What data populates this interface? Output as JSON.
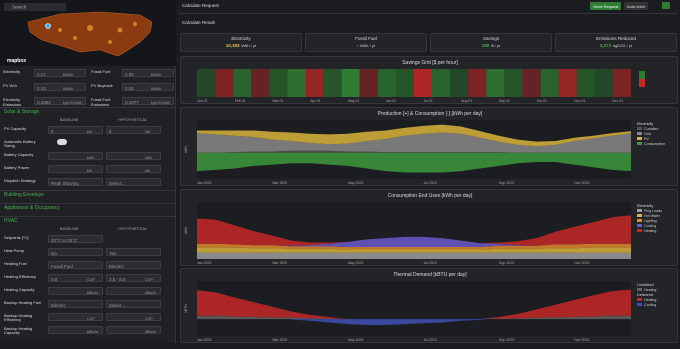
{
  "map": {
    "search": "Search",
    "logo": "mapbox"
  },
  "rates": [
    {
      "label": "Electricity",
      "value": "0.17",
      "unit": "$/kWh"
    },
    {
      "label": "Fossil Fuel",
      "value": "0.05",
      "unit": "$/kWh"
    },
    {
      "label": "PV W/A",
      "value": "0.10",
      "unit": "$/kWh"
    },
    {
      "label": "PV Buyback",
      "value": "0.04",
      "unit": "$/kWh"
    },
    {
      "label": "Electricity Emissions",
      "value": "0.2862",
      "unit": "kgCO2/kWh"
    },
    {
      "label": "Fossil Fuel Emissions",
      "value": "0.1977",
      "unit": "kgCO2/kWh"
    }
  ],
  "solar": {
    "title": "Solar & Storage",
    "columns": [
      "BASELINE",
      "HYPOTHETICAL"
    ],
    "rows": [
      {
        "label": "PV Capacity",
        "baseline": {
          "value": "0",
          "unit": "kW"
        },
        "hypothetical": {
          "value": "6",
          "unit": "kW"
        }
      },
      {
        "label": "Automatic Battery Sizing",
        "toggle": true
      },
      {
        "label": "Battery Capacity",
        "baseline": {
          "unit": "kWh"
        },
        "hypothetical": {
          "unit": "kWh"
        }
      },
      {
        "label": "Battery Power",
        "baseline": {
          "unit": "kW"
        },
        "hypothetical": {
          "unit": "kW"
        }
      },
      {
        "label": "Dispatch Strategy",
        "baseline": {
          "value": "Peak Shaving"
        },
        "hypothetical": {
          "value": "Select..."
        }
      }
    ]
  },
  "sections": [
    "Building Envelope",
    "Appliances & Occupancy"
  ],
  "hvac": {
    "title": "HVAC",
    "columns": [
      "BASELINE",
      "HYPOTHETICAL"
    ],
    "rows": [
      {
        "label": "Setpoints [°C]",
        "baseline": {
          "value": "20°C to 25°C"
        }
      },
      {
        "label": "Heat Pump",
        "baseline": {
          "value": "No"
        },
        "hypothetical": {
          "value": "Yes"
        }
      },
      {
        "label": "Heating Fuel",
        "baseline": {
          "value": "Fossil Fuel"
        },
        "hypothetical": {
          "value": "Electric"
        }
      },
      {
        "label": "Heating Efficiency",
        "baseline": {
          "value": "0.8",
          "unit": "COP"
        },
        "hypothetical": {
          "value": "2.5 - 5.5",
          "unit": "COP"
        }
      },
      {
        "label": "Heating Capacity",
        "baseline": {
          "unit": "kBtu/hr"
        },
        "hypothetical": {
          "unit": "kBtu/hr"
        }
      },
      {
        "label": "Backup Heating Fuel",
        "baseline": {
          "value": "Electric"
        },
        "hypothetical": {
          "value": "Select..."
        }
      },
      {
        "label": "Backup Heating Efficiency",
        "baseline": {
          "unit": "COP"
        },
        "hypothetical": {
          "unit": "COP"
        }
      },
      {
        "label": "Backup Heating Capacity",
        "baseline": {
          "unit": "kBtu/hr"
        },
        "hypothetical": {
          "unit": "kBtu/hr"
        }
      }
    ]
  },
  "header": {
    "request": "Calculate Request",
    "send": "Send Request",
    "auto": "Auto-fetch",
    "result": "Calculate Result"
  },
  "cards": [
    {
      "label": "Electricity",
      "value": "10,183",
      "unit": "kWh / yr",
      "color": "#e8c547"
    },
    {
      "label": "Fossil Fuel",
      "value": "-",
      "unit": "kWh / yr",
      "color": "#e8c547"
    },
    {
      "label": "Savings",
      "value": "180",
      "unit": "$ / yr",
      "color": "#4caf50"
    },
    {
      "label": "Emissions Reduced",
      "value": "3,273",
      "unit": "kgCO2 / yr",
      "color": "#4caf50"
    }
  ],
  "chart_data": [
    {
      "type": "heatmap",
      "title": "Savings Grid [$ per hour]",
      "categories": [
        "Jan 01",
        null,
        "Feb 01",
        null,
        "Mar 01",
        null,
        "Apr 01",
        null,
        "May 01",
        null,
        "Jun 01",
        null,
        "Jul 01",
        null,
        "Aug 01",
        null,
        "Sep 01",
        null,
        "Oct 01",
        null,
        "Nov 01",
        null,
        "Dec 01",
        null
      ],
      "values": [
        0.1,
        -0.2,
        0.3,
        -0.1,
        0.2,
        0.4,
        -0.3,
        0.2,
        0.5,
        -0.1,
        0.3,
        0.2,
        -0.4,
        0.3,
        0.1,
        -0.2,
        0.4,
        0.2,
        -0.1,
        0.3,
        -0.3,
        0.2,
        0.1,
        -0.2
      ],
      "ylim": [
        -0.5,
        0.5
      ]
    },
    {
      "type": "area",
      "title": "Production [+] & Consumption [-]   [kWh per day]",
      "ylabel": "kWh",
      "legend_title": "Electricity",
      "categories": [
        "Jan 2023",
        null,
        null,
        null,
        "Mar 2023",
        null,
        null,
        null,
        "May 2023",
        null,
        null,
        null,
        "Jul 2023",
        null,
        null,
        null,
        "Sep 2023",
        null,
        null,
        null,
        "Nov 2023",
        null,
        null,
        null
      ],
      "ylim": [
        -40,
        50
      ],
      "series": [
        {
          "name": "Curtailed",
          "color": "#555",
          "values": [
            0,
            0,
            1,
            2,
            2,
            3,
            3,
            3,
            2,
            2,
            1,
            1,
            1,
            1,
            1,
            1,
            1,
            0,
            0,
            0,
            0,
            0,
            0,
            0
          ]
        },
        {
          "name": "Grid",
          "color": "#8a8a8a",
          "values": [
            30,
            28,
            25,
            22,
            18,
            15,
            12,
            10,
            12,
            16,
            20,
            25,
            28,
            30,
            28,
            22,
            16,
            12,
            10,
            12,
            18,
            22,
            26,
            30
          ]
        },
        {
          "name": "PV",
          "color": "#d9b43a",
          "values": [
            4,
            6,
            8,
            10,
            12,
            13,
            14,
            15,
            15,
            14,
            13,
            12,
            12,
            12,
            11,
            10,
            9,
            8,
            7,
            6,
            5,
            4,
            4,
            3
          ]
        },
        {
          "name": "Consumption",
          "color": "#3d9a3d",
          "values": [
            -28,
            -26,
            -24,
            -20,
            -18,
            -16,
            -16,
            -18,
            -20,
            -24,
            -28,
            -30,
            -30,
            -30,
            -28,
            -24,
            -20,
            -16,
            -14,
            -14,
            -18,
            -22,
            -26,
            -28
          ]
        }
      ]
    },
    {
      "type": "area",
      "title": "Consumption End Uses   [kWh per day]",
      "ylabel": "kWh",
      "legend_title": "Electricity",
      "categories": [
        "Jan 2023",
        null,
        null,
        null,
        "Mar 2023",
        null,
        null,
        null,
        "May 2023",
        null,
        null,
        null,
        "Jul 2023",
        null,
        null,
        null,
        "Sep 2023",
        null,
        null,
        null,
        "Nov 2023",
        null,
        null,
        null
      ],
      "ylim": [
        0,
        90
      ],
      "series": [
        {
          "name": "Plug Loads",
          "color": "#9e9e9e",
          "values": [
            10,
            10,
            10,
            10,
            10,
            10,
            10,
            10,
            10,
            10,
            10,
            10,
            10,
            10,
            10,
            10,
            10,
            10,
            10,
            10,
            10,
            10,
            10,
            10
          ]
        },
        {
          "name": "Hot Water",
          "color": "#d9b43a",
          "values": [
            8,
            8,
            8,
            7,
            7,
            6,
            6,
            6,
            5,
            5,
            5,
            5,
            5,
            5,
            5,
            5,
            6,
            6,
            6,
            7,
            7,
            8,
            8,
            8
          ]
        },
        {
          "name": "Lighting",
          "color": "#e08a2e",
          "values": [
            6,
            6,
            5,
            5,
            5,
            4,
            4,
            4,
            4,
            4,
            4,
            4,
            4,
            4,
            4,
            4,
            5,
            5,
            5,
            6,
            6,
            6,
            6,
            6
          ]
        },
        {
          "name": "Cooling",
          "color": "#6a5acd",
          "values": [
            0,
            0,
            0,
            0,
            0,
            1,
            2,
            4,
            8,
            12,
            14,
            16,
            16,
            14,
            10,
            6,
            3,
            1,
            0,
            0,
            0,
            0,
            0,
            0
          ]
        },
        {
          "name": "Heating",
          "color": "#c62828",
          "values": [
            40,
            38,
            30,
            22,
            15,
            8,
            4,
            2,
            0,
            0,
            0,
            0,
            0,
            0,
            0,
            0,
            2,
            6,
            12,
            20,
            28,
            34,
            42,
            45
          ]
        }
      ]
    },
    {
      "type": "area",
      "title": "Thermal Demand   [kBTU per day]",
      "ylabel": "kBTU",
      "categories": [
        "Jan 2023",
        null,
        null,
        null,
        "Mar 2023",
        null,
        null,
        null,
        "May 2023",
        null,
        null,
        null,
        "Jul 2023",
        null,
        null,
        null,
        "Sep 2023",
        null,
        null,
        null,
        "Nov 2023",
        null,
        null,
        null
      ],
      "ylim": [
        -40,
        90
      ],
      "series": [
        {
          "name": "Heating",
          "group": "Unutilized",
          "color": "#616161",
          "values": [
            8,
            8,
            6,
            5,
            4,
            3,
            2,
            1,
            0,
            0,
            0,
            0,
            0,
            0,
            0,
            0,
            1,
            2,
            3,
            4,
            5,
            6,
            8,
            8
          ]
        },
        {
          "name": "Heating",
          "group": "Delivered",
          "color": "#c62828",
          "values": [
            60,
            55,
            45,
            35,
            25,
            15,
            8,
            4,
            0,
            0,
            0,
            0,
            0,
            0,
            0,
            0,
            4,
            10,
            20,
            30,
            40,
            50,
            58,
            62
          ]
        },
        {
          "name": "Cooling",
          "group": "Delivered",
          "color": "#3f51b5",
          "values": [
            0,
            0,
            0,
            0,
            0,
            -1,
            -4,
            -8,
            -12,
            -14,
            -14,
            -12,
            -10,
            -8,
            -4,
            -2,
            0,
            0,
            0,
            0,
            0,
            0,
            0,
            0
          ]
        }
      ]
    }
  ]
}
